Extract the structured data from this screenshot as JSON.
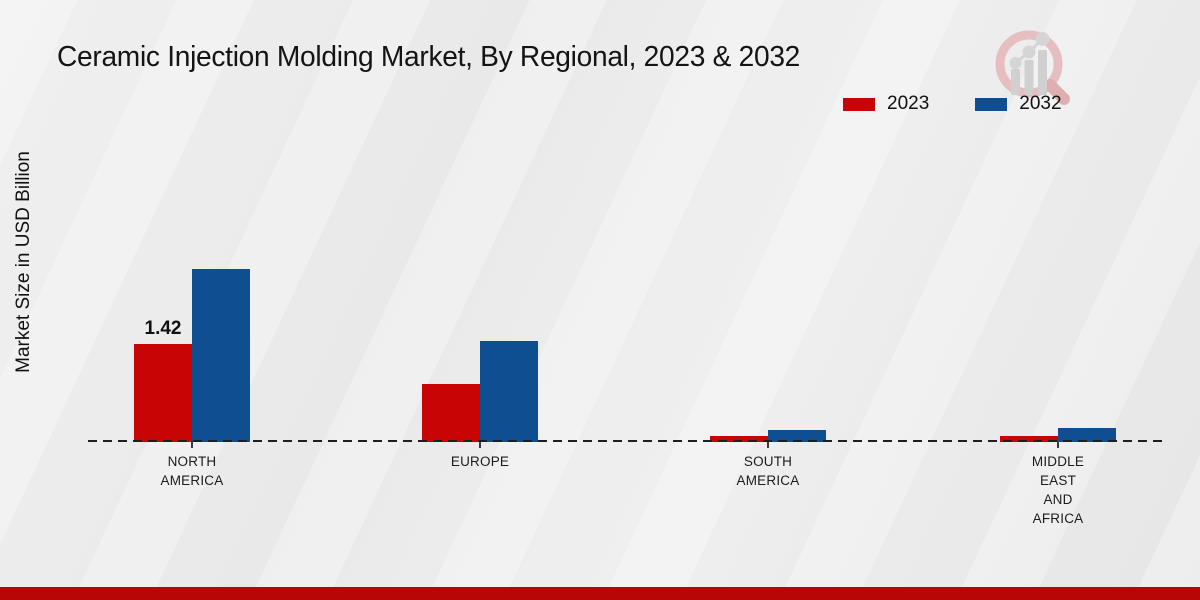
{
  "chart_data": {
    "type": "bar",
    "title": "Ceramic Injection Molding Market, By Regional, 2023 & 2032",
    "ylabel": "Market Size in USD Billion",
    "xlabel": "",
    "ylim": [
      0,
      3
    ],
    "grid": false,
    "legend_position": "top-right",
    "categories": [
      "NORTH\nAMERICA",
      "EUROPE",
      "SOUTH\nAMERICA",
      "MIDDLE\nEAST\nAND\nAFRICA"
    ],
    "series": [
      {
        "name": "2023",
        "color": "#c90404",
        "values": [
          1.42,
          0.84,
          0.08,
          0.09
        ]
      },
      {
        "name": "2032",
        "color": "#0f4e90",
        "values": [
          2.51,
          1.46,
          0.17,
          0.2
        ]
      }
    ],
    "annotations": [
      {
        "series": "2023",
        "category_index": 0,
        "text": "1.42"
      }
    ],
    "baseline": {
      "value": 0,
      "style": "dashed",
      "color": "#1e1e1e"
    }
  },
  "colors": {
    "footer_bar": "#b80505",
    "background": "#ebebeb",
    "watermark_pink": "#e7bcbd",
    "watermark_gray": "#cfcfcf"
  }
}
